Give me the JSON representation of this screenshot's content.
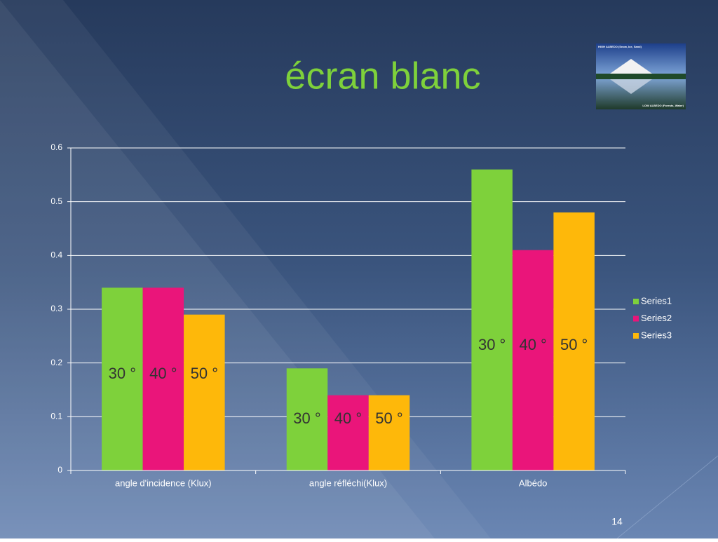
{
  "chart_data": {
    "type": "bar",
    "title": "écran blanc",
    "categories": [
      "angle d'incidence (Klux)",
      "angle réfléchi(Klux)",
      "Albédo"
    ],
    "series": [
      {
        "name": "Series1",
        "color": "#7ed13b",
        "values": [
          0.34,
          0.19,
          0.56
        ]
      },
      {
        "name": "Series2",
        "color": "#ea157a",
        "values": [
          0.34,
          0.14,
          0.41
        ]
      },
      {
        "name": "Series3",
        "color": "#feb80a",
        "values": [
          0.29,
          0.14,
          0.48
        ]
      }
    ],
    "bar_labels": [
      [
        "30 °",
        "40 °",
        "50 °"
      ],
      [
        "30 °",
        "40 °",
        "50 °"
      ],
      [
        "30 °",
        "40 °",
        "50 °"
      ]
    ],
    "ylim": [
      0,
      0.6
    ],
    "yticks": [
      0,
      0.1,
      0.2,
      0.3,
      0.4,
      0.5,
      0.6
    ],
    "grid": true,
    "legend": "right"
  },
  "slide": {
    "page_number": "14",
    "image_captions": [
      "HIGH ALBEDO (Snow, Ice, Sand)",
      "LOW ALBEDO (Forests, Water)"
    ]
  }
}
